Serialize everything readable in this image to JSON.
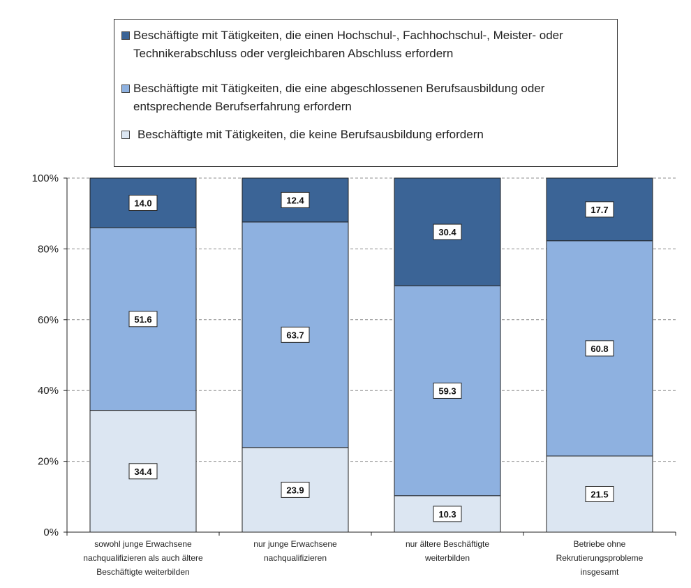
{
  "colors": {
    "dark": "#3b6496",
    "mid": "#8eb1e0",
    "light": "#dce6f2",
    "stroke": "#222222",
    "grid": "#8c8c8c"
  },
  "legend": [
    {
      "text": "Beschäftigte mit Tätigkeiten, die einen Hochschul-, Fachhochschul-, Meister- oder Technikerabschluss oder vergleichbaren Abschluss erfordern",
      "color_key": "dark"
    },
    {
      "text": "Beschäftigte mit Tätigkeiten, die eine abgeschlossenen Berufsausbildung oder entsprechende Berufserfahrung erfordern",
      "color_key": "mid"
    },
    {
      "text": "Beschäftigte mit Tätigkeiten, die keine Berufsausbildung erfordern",
      "color_key": "light"
    }
  ],
  "chart_data": {
    "type": "bar",
    "stacked": true,
    "title": "",
    "xlabel": "",
    "ylabel": "",
    "ylim": [
      0,
      100
    ],
    "y_ticks": [
      "0%",
      "20%",
      "40%",
      "60%",
      "80%",
      "100%"
    ],
    "grid": "horizontal dashed",
    "legend_position": "top",
    "categories": [
      [
        "sowohl junge Erwachsene",
        "nachqualifizieren als auch ältere",
        "Beschäftigte weiterbilden"
      ],
      [
        "nur junge Erwachsene",
        "nachqualifizieren"
      ],
      [
        "nur ältere Beschäftigte",
        "weiterbilden"
      ],
      [
        "Betriebe ohne",
        "Rekrutierungsprobleme",
        "insgesamt"
      ]
    ],
    "series": [
      {
        "name": "Beschäftigte mit Tätigkeiten, die keine Berufsausbildung erfordern",
        "values": [
          34.4,
          23.9,
          10.3,
          21.5
        ],
        "labels": [
          "34.4",
          "23.9",
          "10.3",
          "21.5"
        ],
        "color_key": "light"
      },
      {
        "name": "Beschäftigte mit Tätigkeiten, die eine abgeschlossenen Berufsausbildung oder entsprechende Berufserfahrung erfordern",
        "values": [
          51.6,
          63.7,
          59.3,
          60.8
        ],
        "labels": [
          "51.6",
          "63.7",
          "59.3",
          "60.8"
        ],
        "color_key": "mid"
      },
      {
        "name": "Beschäftigte mit Tätigkeiten, die einen Hochschul-, Fachhochschul-, Meister- oder Technikerabschluss oder vergleichbaren Abschluss erfordern",
        "values": [
          14.0,
          12.4,
          30.4,
          17.7
        ],
        "labels": [
          "14.0",
          "12.4",
          "30.4",
          "17.7"
        ],
        "color_key": "dark"
      }
    ]
  }
}
